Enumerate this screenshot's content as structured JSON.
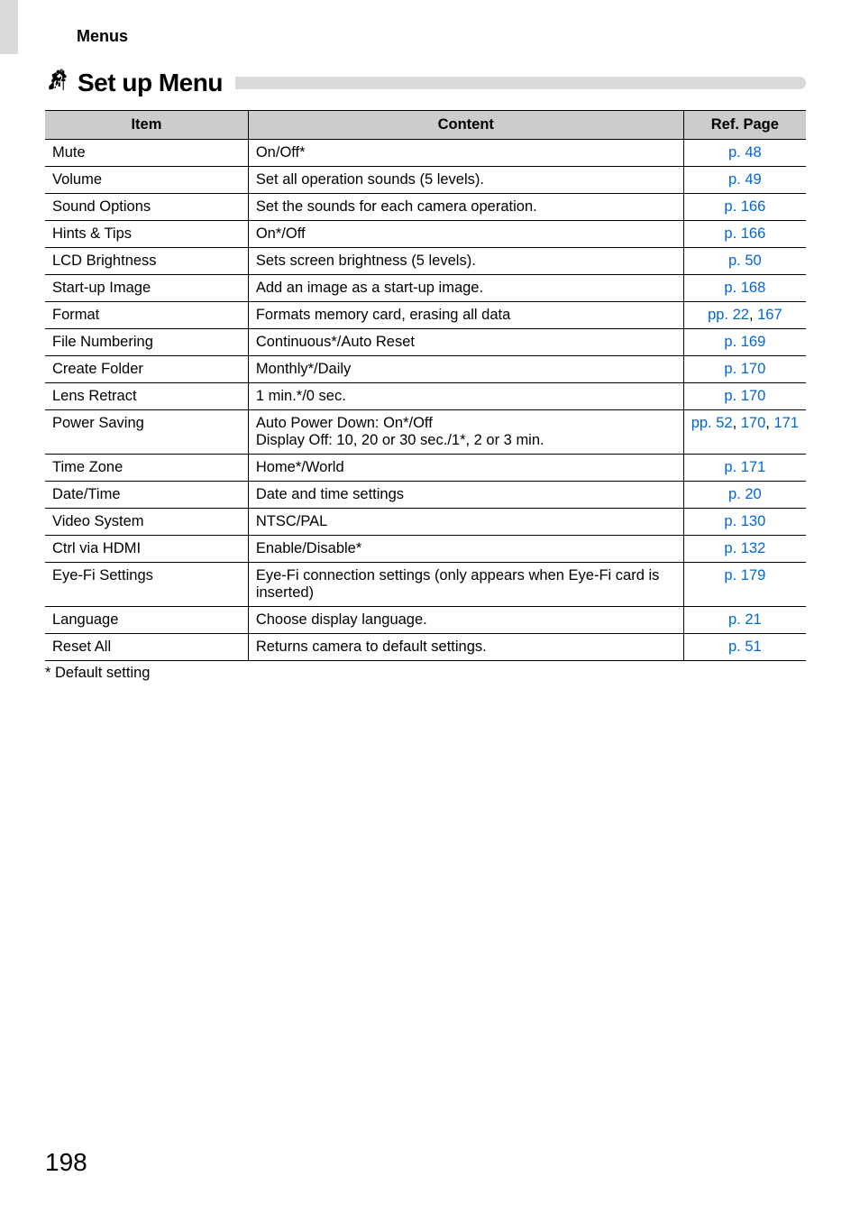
{
  "breadcrumb": "Menus",
  "section": {
    "title": "Set up Menu",
    "icon_svg": "tools"
  },
  "table": {
    "headers": [
      "Item",
      "Content",
      "Ref. Page"
    ],
    "rows": [
      {
        "item": "Mute",
        "content": "On/Off*",
        "ref_html": "<span class='link'>p. 48</span>"
      },
      {
        "item": "Volume",
        "content": "Set all operation sounds (5 levels).",
        "ref_html": "<span class='link'>p. 49</span>"
      },
      {
        "item": "Sound Options",
        "content": "Set the sounds for each camera operation.",
        "ref_html": "<span class='link'>p. 166</span>"
      },
      {
        "item": "Hints & Tips",
        "content": "On*/Off",
        "ref_html": "<span class='link'>p. 166</span>"
      },
      {
        "item": "LCD Brightness",
        "content": "Sets screen brightness (5 levels).",
        "ref_html": "<span class='link'>p. 50</span>"
      },
      {
        "item": "Start-up Image",
        "content": "Add an image as a start-up image.",
        "ref_html": "<span class='link'>p. 168</span>"
      },
      {
        "item": "Format",
        "content": "Formats memory card, erasing all data",
        "ref_html": "<span class='link'>pp. 22</span>, <span class='link'>167</span>"
      },
      {
        "item": "File Numbering",
        "content": "Continuous*/Auto Reset",
        "ref_html": "<span class='link'>p. 169</span>"
      },
      {
        "item": "Create Folder",
        "content": "Monthly*/Daily",
        "ref_html": "<span class='link'>p. 170</span>"
      },
      {
        "item": "Lens Retract",
        "content": "1 min.*/0 sec.",
        "ref_html": "<span class='link'>p. 170</span>"
      },
      {
        "item": "Power Saving",
        "content": "Auto Power Down: On*/Off\nDisplay Off: 10, 20 or 30 sec./1*, 2 or 3 min.",
        "ref_html": "<span class='link'>pp. 52</span>, <span class='link'>170</span>, <span class='link'>171</span>"
      },
      {
        "item": "Time Zone",
        "content": "Home*/World",
        "ref_html": "<span class='link'>p. 171</span>"
      },
      {
        "item": "Date/Time",
        "content": "Date and time settings",
        "ref_html": "<span class='link'>p. 20</span>"
      },
      {
        "item": "Video System",
        "content": "NTSC/PAL",
        "ref_html": "<span class='link'>p. 130</span>"
      },
      {
        "item": "Ctrl via HDMI",
        "content": "Enable/Disable*",
        "ref_html": "<span class='link'>p. 132</span>"
      },
      {
        "item": "Eye-Fi Settings",
        "content": "Eye-Fi connection settings (only appears when Eye-Fi card is inserted)",
        "ref_html": "<span class='link'>p. 179</span>"
      },
      {
        "item": "Language",
        "content": "Choose display language.",
        "ref_html": "<span class='link'>p. 21</span>"
      },
      {
        "item": "Reset All",
        "content": "Returns camera to default settings.",
        "ref_html": "<span class='link'>p. 51</span>"
      }
    ],
    "col_widths": [
      "27%",
      "58%",
      "15%"
    ]
  },
  "footnote": "*  Default setting",
  "page_number": "198",
  "colors": {
    "header_bg": "#cccccc",
    "rule_bg": "#d9d9d9",
    "link": "#0066cc",
    "text": "#000000"
  }
}
